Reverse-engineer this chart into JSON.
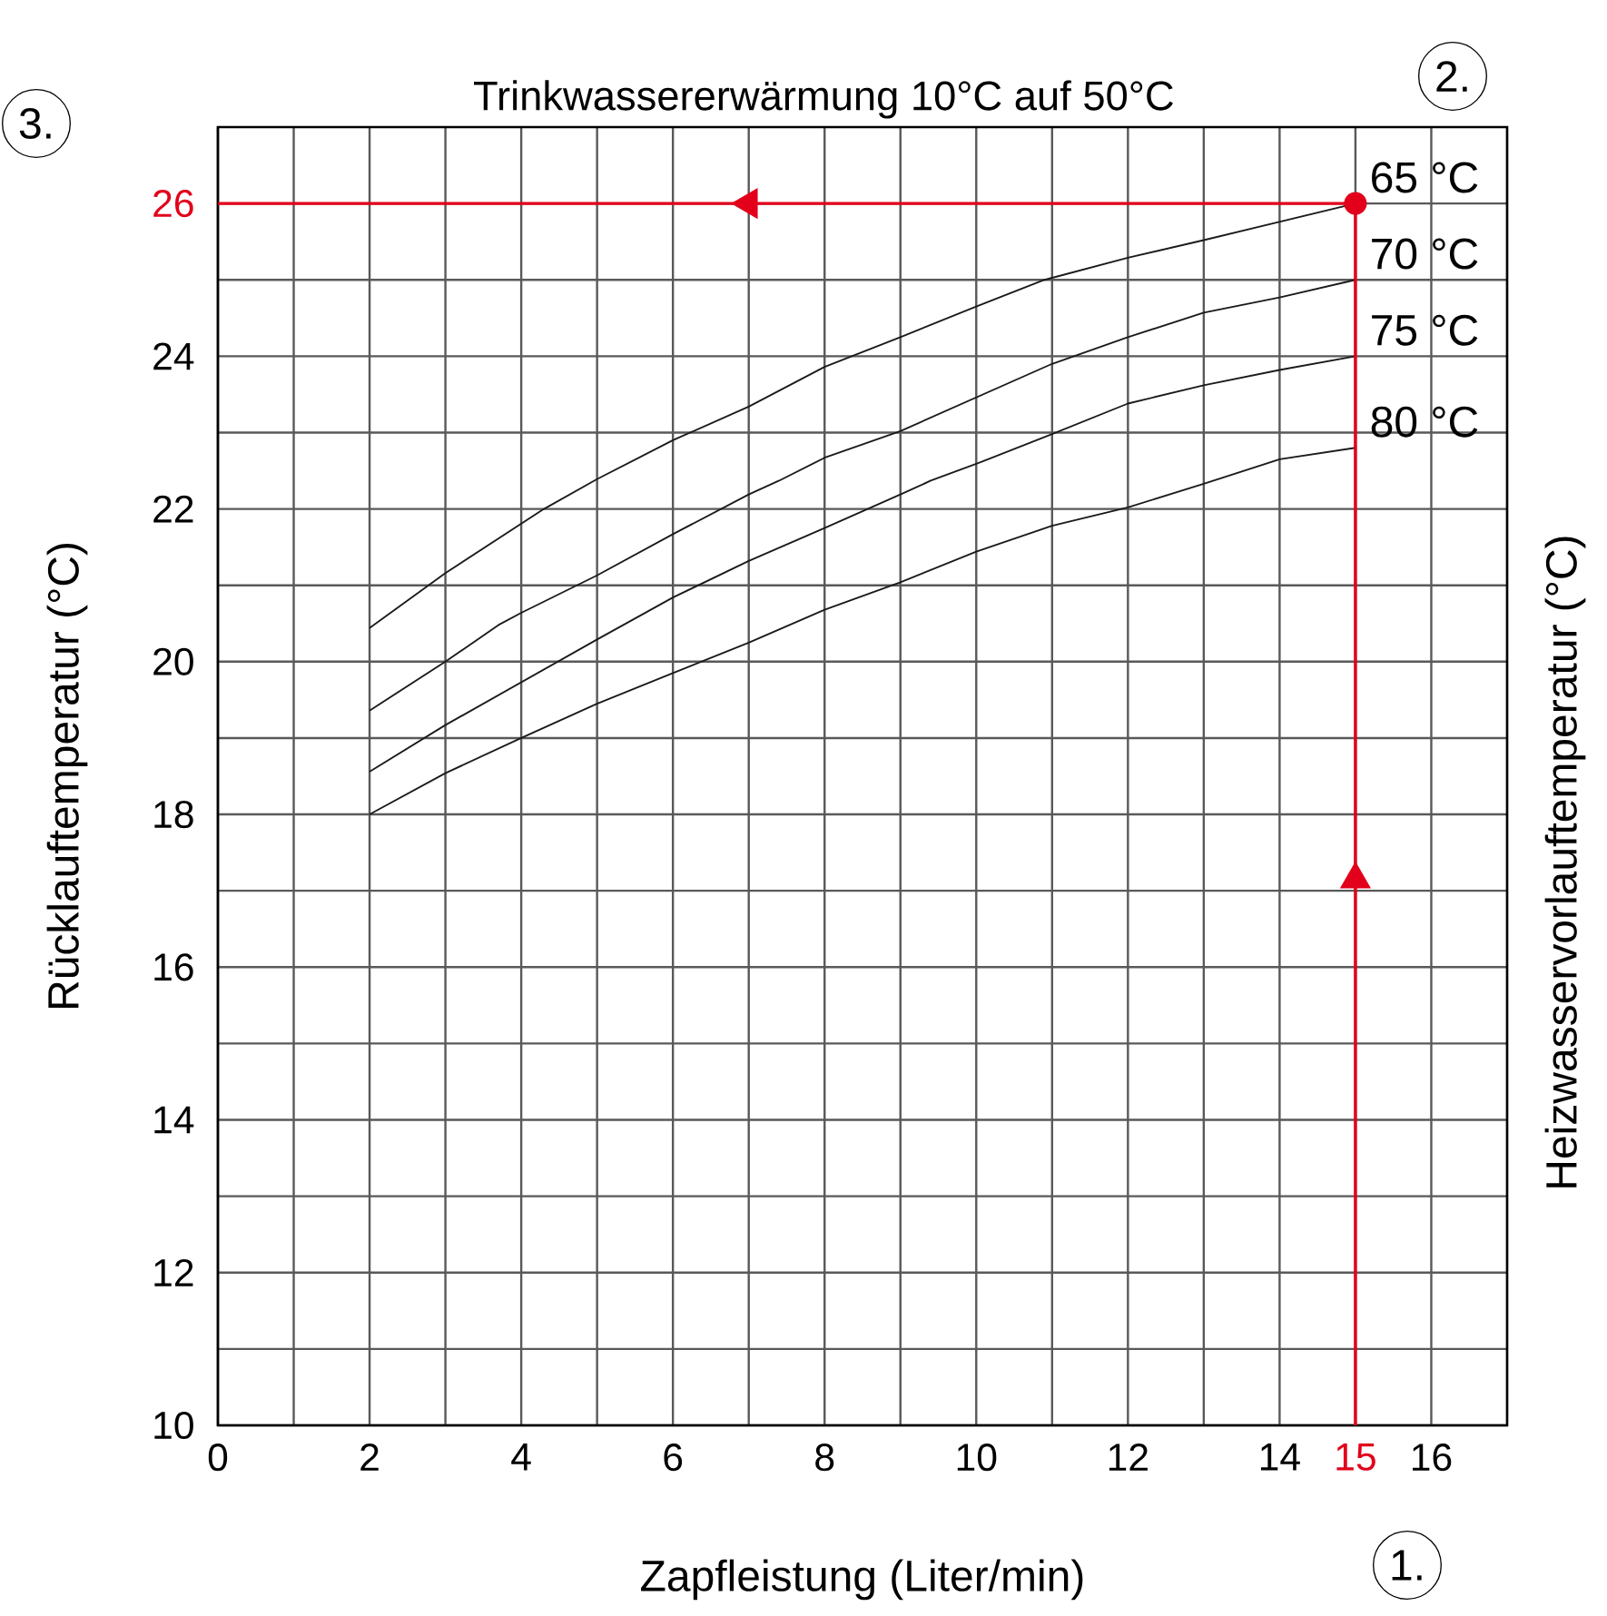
{
  "chart_data": {
    "type": "line",
    "title": "Trinkwassererwärmung 10°C auf 50°C",
    "xlabel": "Zapfleistung (Liter/min)",
    "ylabel": "Rücklauftemperatur (°C)",
    "y2label": "Heizwasservorlauftemperatur (°C)",
    "annotations": [
      "1.",
      "2.",
      "3."
    ],
    "xlim": [
      0,
      17
    ],
    "ylim": [
      10,
      27
    ],
    "xticks": [
      0,
      {
        "value": 1,
        "label": null
      },
      2,
      {
        "value": 3,
        "label": null
      },
      4,
      {
        "value": 5,
        "label": null
      },
      6,
      {
        "value": 7,
        "label": null
      },
      8,
      {
        "value": 9,
        "label": null
      },
      10,
      {
        "value": 11,
        "label": null
      },
      12,
      {
        "value": 13,
        "label": null
      },
      14,
      15,
      16
    ],
    "yticks": [
      10,
      {
        "value": 11,
        "label": null
      },
      12,
      {
        "value": 13,
        "label": null
      },
      14,
      {
        "value": 15,
        "label": null
      },
      16,
      {
        "value": 17,
        "label": null
      },
      18,
      {
        "value": 19,
        "label": null
      },
      20,
      {
        "value": 21,
        "label": null
      },
      22,
      {
        "value": 23,
        "label": null
      },
      24,
      {
        "value": 25,
        "label": null
      },
      26
    ],
    "grid": true,
    "legend": false,
    "marker": "none",
    "series": [
      {
        "name": "65 °C",
        "color": "#1a1a1a",
        "x": [
          2,
          3,
          4.3,
          5,
          6,
          7,
          8,
          9,
          10,
          10.9,
          12,
          13,
          14,
          15
        ],
        "values": [
          20.44,
          21.16,
          22.0,
          22.39,
          22.9,
          23.34,
          23.86,
          24.25,
          24.65,
          25.0,
          25.29,
          25.52,
          25.76,
          26.0
        ]
      },
      {
        "name": "70 °C",
        "color": "#1a1a1a",
        "x": [
          2,
          3,
          3.7,
          4,
          5,
          6,
          7,
          7.4,
          8,
          9,
          10,
          11,
          12,
          13,
          14,
          15
        ],
        "values": [
          19.36,
          20.0,
          20.48,
          20.64,
          21.13,
          21.67,
          22.19,
          22.37,
          22.67,
          23.02,
          23.46,
          23.9,
          24.25,
          24.57,
          24.77,
          25.0
        ]
      },
      {
        "name": "75 °C",
        "color": "#1a1a1a",
        "x": [
          2,
          3,
          4,
          5,
          6,
          7,
          8,
          9,
          9.4,
          10,
          11,
          12,
          13,
          14,
          15
        ],
        "values": [
          18.56,
          19.17,
          19.73,
          20.29,
          20.84,
          21.32,
          21.75,
          22.19,
          22.37,
          22.59,
          22.98,
          23.38,
          23.62,
          23.82,
          24.0
        ]
      },
      {
        "name": "80 °C",
        "color": "#1a1a1a",
        "x": [
          2,
          3,
          4,
          5,
          6,
          7,
          8,
          9,
          10,
          11,
          12,
          13,
          14,
          15
        ],
        "values": [
          18.0,
          18.54,
          19.0,
          19.45,
          19.85,
          20.25,
          20.68,
          21.04,
          21.44,
          21.78,
          22.02,
          22.33,
          22.65,
          22.8
        ]
      },
      {
        "type": "line",
        "color": "#e2001a",
        "x": [
          15,
          15,
          0
        ],
        "values": [
          10,
          26,
          26
        ]
      },
      {
        "type": "scatter",
        "marker": "circle",
        "color": "#e2001a",
        "x": [
          15
        ],
        "values": [
          26
        ]
      },
      {
        "type": "scatter",
        "marker": "triangle",
        "color": "#e2001a",
        "x": [
          15,
          7
        ],
        "values": [
          17.15,
          26
        ]
      }
    ]
  }
}
